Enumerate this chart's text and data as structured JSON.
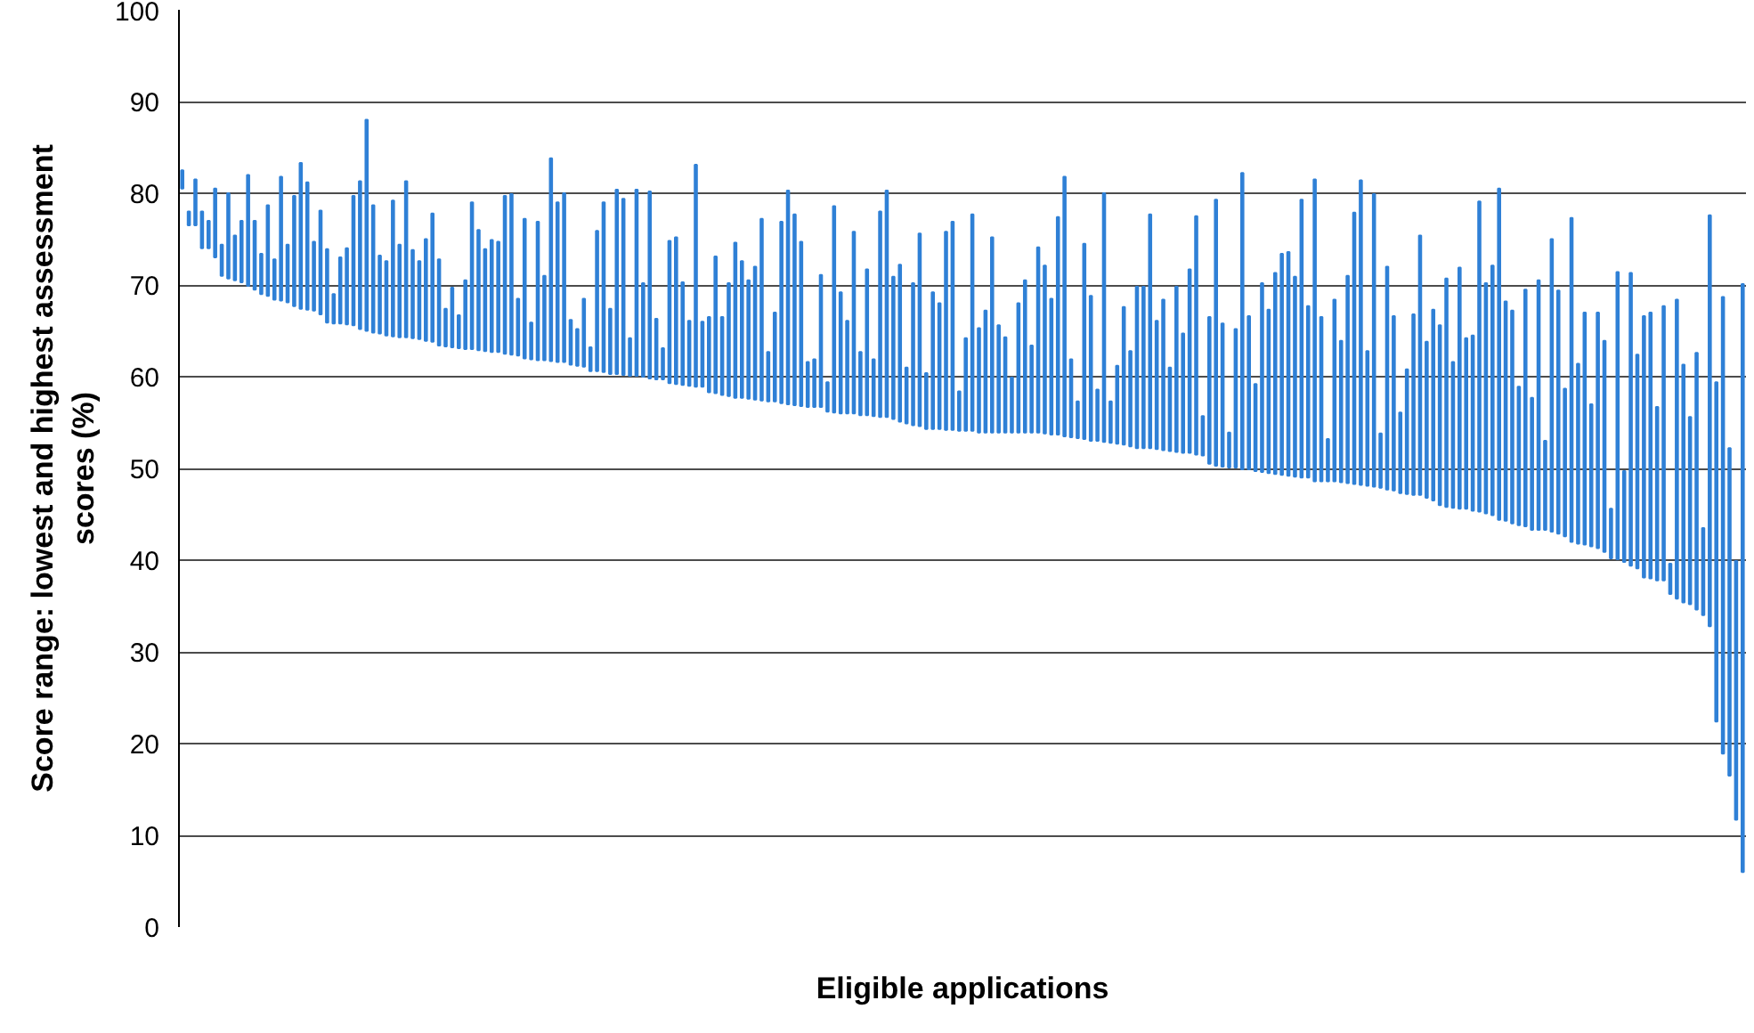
{
  "chart_data": {
    "type": "bar",
    "xlabel": "Eligible applications",
    "ylabel": "Score range: lowest and highest assessment scores (%)",
    "categories": [
      null,
      null,
      null,
      null,
      null,
      null,
      null,
      null,
      null,
      null,
      null,
      null,
      null,
      null,
      null,
      null,
      null,
      null,
      null,
      null,
      null,
      null,
      null,
      null,
      null,
      null,
      null,
      null,
      null,
      null,
      null,
      null,
      null,
      null,
      null,
      null,
      null,
      null,
      null,
      null,
      null,
      null,
      null,
      null,
      null,
      null,
      null,
      null,
      null,
      null,
      null,
      null,
      null,
      null,
      null,
      null,
      null,
      null,
      null,
      null,
      null,
      null,
      null,
      null,
      null,
      null,
      null,
      null,
      null,
      null,
      null,
      null,
      null,
      null,
      null,
      null,
      null,
      null,
      null,
      null,
      null,
      null,
      null,
      null,
      null,
      null,
      null,
      null,
      null,
      null,
      null,
      null,
      null,
      null,
      null,
      null,
      null,
      null,
      null,
      null,
      null,
      null,
      null,
      null,
      null,
      null,
      null,
      null,
      null,
      null,
      null,
      null,
      null,
      null,
      null,
      null,
      null,
      null,
      null,
      null,
      null,
      null,
      null,
      null,
      null,
      null,
      null,
      null,
      null,
      null,
      null,
      null,
      null,
      null,
      null,
      null,
      null,
      null,
      null,
      null,
      null,
      null,
      null,
      null,
      null,
      null,
      null,
      null,
      null,
      null,
      null,
      null,
      null,
      null,
      null,
      null,
      null,
      null,
      null,
      null,
      null,
      null,
      null,
      null,
      null,
      null,
      null,
      null,
      null,
      null,
      null,
      null,
      null,
      null,
      null,
      null,
      null,
      null,
      null,
      null,
      null,
      null,
      null,
      null,
      null,
      null,
      null,
      null,
      null,
      null,
      null,
      null,
      null,
      null,
      null,
      null,
      null,
      null,
      null,
      null,
      null,
      null,
      null,
      null,
      null,
      null,
      null,
      null,
      null,
      null,
      null,
      null,
      null,
      null,
      null,
      null,
      null,
      null,
      null,
      null,
      null,
      null,
      null,
      null,
      null,
      null,
      null,
      null,
      null,
      null,
      null,
      null,
      null,
      null,
      null,
      null,
      null,
      null
    ],
    "base": [
      80.5,
      76.5,
      76.5,
      74,
      74,
      73,
      71,
      70.7,
      70.5,
      70.3,
      69.9,
      69.5,
      69,
      68.8,
      68.4,
      68.3,
      68.1,
      67.7,
      67.4,
      67.3,
      67.2,
      66.8,
      65.9,
      65.8,
      65.8,
      65.7,
      65.6,
      65.2,
      65,
      64.8,
      64.7,
      64.5,
      64.4,
      64.3,
      64.3,
      64.2,
      64.1,
      63.9,
      63.8,
      63.4,
      63.3,
      63.2,
      63.1,
      63,
      63,
      62.9,
      62.8,
      62.7,
      62.7,
      62.5,
      62.4,
      62.3,
      62,
      61.9,
      61.8,
      61.8,
      61.7,
      61.6,
      61.6,
      61.3,
      61.2,
      61.1,
      60.6,
      60.6,
      60.5,
      60.3,
      60.3,
      60.2,
      60.1,
      60.1,
      60,
      59.8,
      59.7,
      59.7,
      59.3,
      59.2,
      59.1,
      59,
      58.9,
      58.9,
      58.3,
      58.2,
      58,
      57.9,
      57.7,
      57.7,
      57.6,
      57.5,
      57.4,
      57.3,
      57.3,
      57.1,
      57,
      56.9,
      56.8,
      56.7,
      56.7,
      56.7,
      56.2,
      56.1,
      56,
      56,
      56,
      55.8,
      55.8,
      55.7,
      55.6,
      55.6,
      55.4,
      55.1,
      54.9,
      54.7,
      54.6,
      54.3,
      54.3,
      54.3,
      54.2,
      54.2,
      54.1,
      54.1,
      54.1,
      53.9,
      53.9,
      53.9,
      53.9,
      53.9,
      53.9,
      53.9,
      53.9,
      53.9,
      53.9,
      53.8,
      53.7,
      53.7,
      53.5,
      53.4,
      53.3,
      53.2,
      53,
      53,
      52.9,
      52.8,
      52.7,
      52.6,
      52.4,
      52.2,
      52.2,
      52.2,
      52.1,
      52,
      51.9,
      51.8,
      51.7,
      51.7,
      51.5,
      51.4,
      50.5,
      50.3,
      50.2,
      50.1,
      50.1,
      49.9,
      49.9,
      49.7,
      49.6,
      49.5,
      49.4,
      49.3,
      49.2,
      49.1,
      49,
      49,
      48.6,
      48.6,
      48.6,
      48.6,
      48.5,
      48.4,
      48.3,
      48.2,
      48.1,
      48,
      47.9,
      47.7,
      47.6,
      47.3,
      47.2,
      47.1,
      47.1,
      46.8,
      46.5,
      46,
      45.8,
      45.7,
      45.6,
      45.6,
      45.4,
      45.3,
      45.1,
      44.9,
      44.4,
      44.3,
      44,
      43.8,
      43.7,
      43.3,
      43.3,
      43.3,
      43.1,
      42.9,
      42.6,
      42,
      41.8,
      41.7,
      41.5,
      41.3,
      40.9,
      40.2,
      40.1,
      39.8,
      39.4,
      39.1,
      38.1,
      38,
      37.8,
      37.8,
      36.3,
      35.8,
      35.4,
      35.2,
      34.6,
      34,
      32.8,
      22.4,
      18.9,
      16.5,
      11.7,
      6
    ],
    "values": [
      2.0,
      1.5,
      5.0,
      4.0,
      3.0,
      7.5,
      3.4,
      9.3,
      4.9,
      6.7,
      12.1,
      7.5,
      4.4,
      9.9,
      4.4,
      13.5,
      6.3,
      12.0,
      15.9,
      13.9,
      7.5,
      11.3,
      8.0,
      3.2,
      7.2,
      8.3,
      14.1,
      16.1,
      23.0,
      13.9,
      8.5,
      8.1,
      14.8,
      10.1,
      17.0,
      9.6,
      8.5,
      11.1,
      14.0,
      9.4,
      4.1,
      6.5,
      3.6,
      7.5,
      16.0,
      13.1,
      11.1,
      12.2,
      12.0,
      17.2,
      17.5,
      6.2,
      15.2,
      4.0,
      15.1,
      9.2,
      22.1,
      17.4,
      18.4,
      4.9,
      4.0,
      7.4,
      2.6,
      15.3,
      18.5,
      7.1,
      20.1,
      19.2,
      4.1,
      20.3,
      10.2,
      20.4,
      6.6,
      3.4,
      15.5,
      16.0,
      11.2,
      7.1,
      24.2,
      7.1,
      8.2,
      14.9,
      8.5,
      12.3,
      16.9,
      14.9,
      12.9,
      14.5,
      19.8,
      5.4,
      9.7,
      19.8,
      23.3,
      20.8,
      17.9,
      4.9,
      5.2,
      14.4,
      3.2,
      22.5,
      13.2,
      10.1,
      19.8,
      6.9,
      15.9,
      6.2,
      22.4,
      24.7,
      15.5,
      17.1,
      6.1,
      15.5,
      21.0,
      6.1,
      14.9,
      13.7,
      21.6,
      22.7,
      4.3,
      10.1,
      23.6,
      11.4,
      13.3,
      21.3,
      11.7,
      10.4,
      6.0,
      14.1,
      16.6,
      9.5,
      20.2,
      18.3,
      14.8,
      23.7,
      28.3,
      8.5,
      4.0,
      21.3,
      15.8,
      5.6,
      27.1,
      4.5,
      8.5,
      15.0,
      10.4,
      17.6,
      17.6,
      25.5,
      14.0,
      16.4,
      9.1,
      18.0,
      13.0,
      20.0,
      26.0,
      4.3,
      16.0,
      29.0,
      15.6,
      3.8,
      15.1,
      32.3,
      16.7,
      9.5,
      20.6,
      17.8,
      21.9,
      24.1,
      24.4,
      21.8,
      30.3,
      18.7,
      32.9,
      17.9,
      4.6,
      19.8,
      15.4,
      22.6,
      29.6,
      33.2,
      14.7,
      31.9,
      5.9,
      24.3,
      19.0,
      8.8,
      13.6,
      19.7,
      28.3,
      17.0,
      20.8,
      19.6,
      24.9,
      15.9,
      26.3,
      18.6,
      19.1,
      33.8,
      25.1,
      27.2,
      36.1,
      23.9,
      23.2,
      15.1,
      25.8,
      14.4,
      27.2,
      9.7,
      31.9,
      26.5,
      16.1,
      35.3,
      19.6,
      25.3,
      15.5,
      25.7,
      23.0,
      5.4,
      31.3,
      9.9,
      31.9,
      23.3,
      28.5,
      29.0,
      18.9,
      29.9,
      3.3,
      32.6,
      25.9,
      20.4,
      28.0,
      9.5,
      44.8,
      37.0,
      49.8,
      35.7,
      28.2,
      64.1
    ],
    "color": "#2f80d6",
    "ylim": [
      0,
      100
    ],
    "yticks": [
      0,
      10,
      20,
      30,
      40,
      50,
      60,
      70,
      80,
      90,
      100
    ],
    "grid": "y",
    "tick_labels": "y"
  }
}
